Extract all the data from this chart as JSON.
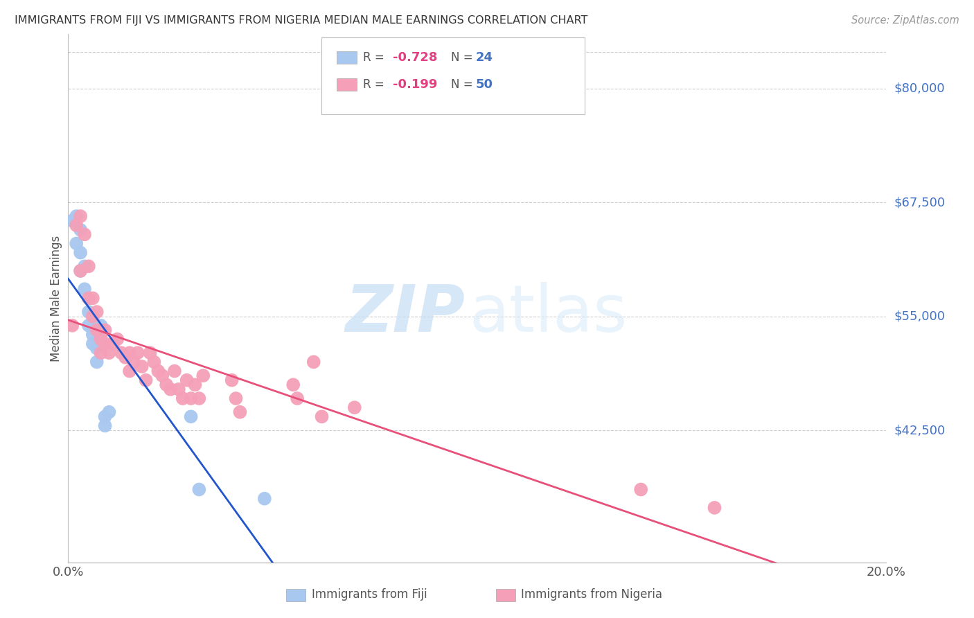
{
  "title": "IMMIGRANTS FROM FIJI VS IMMIGRANTS FROM NIGERIA MEDIAN MALE EARNINGS CORRELATION CHART",
  "source": "Source: ZipAtlas.com",
  "ylabel": "Median Male Earnings",
  "fiji_color": "#a8c8f0",
  "nigeria_color": "#f5a0b8",
  "fiji_line_color": "#2255cc",
  "nigeria_line_color": "#e8507a",
  "fiji_label": "Immigrants from Fiji",
  "nigeria_label": "Immigrants from Nigeria",
  "fiji_R": -0.728,
  "fiji_N": 24,
  "nigeria_R": -0.199,
  "nigeria_N": 50,
  "background_color": "#ffffff",
  "grid_color": "#cccccc",
  "watermark_zip": "ZIP",
  "watermark_atlas": "atlas",
  "x_min": 0.0,
  "x_max": 0.2,
  "y_min": 28000,
  "y_max": 86000,
  "y_ticks": [
    42500,
    55000,
    67500,
    80000
  ],
  "y_tick_labels": [
    "$42,500",
    "$55,000",
    "$67,500",
    "$80,000"
  ],
  "fiji_x": [
    0.001,
    0.002,
    0.002,
    0.003,
    0.003,
    0.003,
    0.004,
    0.004,
    0.005,
    0.005,
    0.005,
    0.006,
    0.006,
    0.006,
    0.007,
    0.007,
    0.008,
    0.008,
    0.009,
    0.009,
    0.01,
    0.03,
    0.032,
    0.048
  ],
  "fiji_y": [
    65500,
    66000,
    63000,
    64500,
    62000,
    60000,
    60500,
    58000,
    57000,
    55500,
    54000,
    55000,
    53000,
    52000,
    51500,
    50000,
    54000,
    52000,
    44000,
    43000,
    44500,
    44000,
    36000,
    35000
  ],
  "nigeria_x": [
    0.001,
    0.002,
    0.003,
    0.003,
    0.004,
    0.005,
    0.005,
    0.006,
    0.006,
    0.007,
    0.007,
    0.008,
    0.008,
    0.009,
    0.009,
    0.01,
    0.011,
    0.012,
    0.013,
    0.014,
    0.015,
    0.015,
    0.016,
    0.017,
    0.018,
    0.019,
    0.02,
    0.021,
    0.022,
    0.023,
    0.024,
    0.025,
    0.026,
    0.027,
    0.028,
    0.029,
    0.03,
    0.031,
    0.032,
    0.033,
    0.04,
    0.041,
    0.042,
    0.055,
    0.056,
    0.06,
    0.062,
    0.07,
    0.14,
    0.158
  ],
  "nigeria_y": [
    54000,
    65000,
    66000,
    60000,
    64000,
    60500,
    57000,
    57000,
    55000,
    55500,
    53500,
    52500,
    51000,
    53500,
    52000,
    51000,
    52000,
    52500,
    51000,
    50500,
    51000,
    49000,
    50000,
    51000,
    49500,
    48000,
    51000,
    50000,
    49000,
    48500,
    47500,
    47000,
    49000,
    47000,
    46000,
    48000,
    46000,
    47500,
    46000,
    48500,
    48000,
    46000,
    44500,
    47500,
    46000,
    50000,
    44000,
    45000,
    36000,
    34000
  ]
}
